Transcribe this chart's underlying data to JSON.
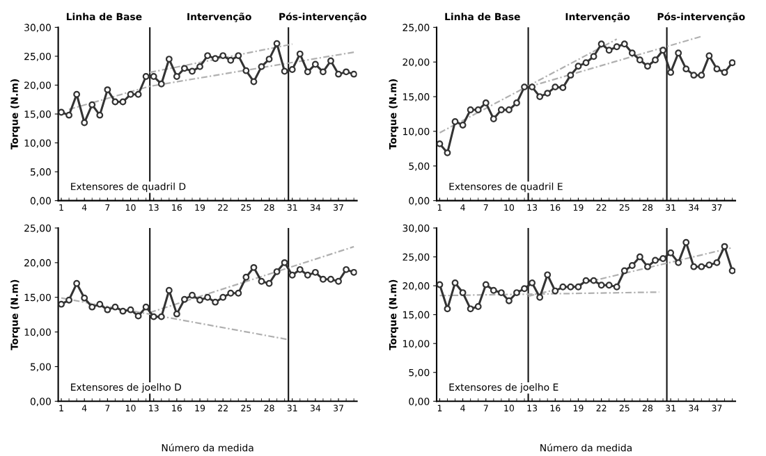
{
  "chart_data": [
    {
      "type": "line",
      "ylabel": "Torque (N.m)",
      "x": [
        1,
        2,
        3,
        4,
        5,
        6,
        7,
        8,
        9,
        10,
        11,
        12,
        13,
        14,
        15,
        16,
        17,
        18,
        19,
        20,
        21,
        22,
        23,
        24,
        25,
        26,
        27,
        28,
        29,
        30,
        31,
        32,
        33,
        34,
        35,
        36,
        37,
        38,
        39
      ],
      "xlim": [
        0.6,
        39.4
      ],
      "xticks": [
        1,
        4,
        7,
        10,
        13,
        16,
        19,
        22,
        25,
        28,
        31,
        34,
        37
      ],
      "ylim": [
        0,
        30
      ],
      "yticks": [
        {
          "value": 0,
          "label": "0,00"
        },
        {
          "value": 5,
          "label": "5,00"
        },
        {
          "value": 10,
          "label": "10,00"
        },
        {
          "value": 15,
          "label": "15,00"
        },
        {
          "value": 20,
          "label": "20,00"
        },
        {
          "value": 25,
          "label": "25,00"
        },
        {
          "value": 30,
          "label": "30,00"
        }
      ],
      "marker": "circle",
      "grid": false,
      "legend": false,
      "series": [
        {
          "color": "#333333",
          "values": [
            15.3,
            14.8,
            18.4,
            13.5,
            16.6,
            14.8,
            19.2,
            17.1,
            17.1,
            18.4,
            18.4,
            21.5,
            21.5,
            20.2,
            24.5,
            21.5,
            22.9,
            22.4,
            23.2,
            25.1,
            24.6,
            25.1,
            24.3,
            25.1,
            22.5,
            20.6,
            23.2,
            24.5,
            27.2,
            22.4,
            22.7,
            25.4,
            22.3,
            23.6,
            22.3,
            24.2,
            21.9,
            22.3,
            21.9
          ]
        },
        {
          "type": "line",
          "marker": "none",
          "line_style": "dashed",
          "color": "#b0b0b0",
          "x": [
            2,
            12.5,
            39
          ],
          "values": [
            15.8,
            19.8,
            25.7
          ]
        },
        {
          "type": "line",
          "marker": "none",
          "line_style": "dashed",
          "color": "#b0b0b0",
          "x": [
            12.5,
            31
          ],
          "values": [
            22.2,
            27.1
          ]
        }
      ],
      "ref_lines": [
        {
          "axis": "x",
          "value": 12.5,
          "color": "#111111"
        },
        {
          "axis": "x",
          "value": 30.5,
          "color": "#111111"
        }
      ],
      "annotations": [
        "Linha de Base",
        "Intervenção",
        "Pós-intervenção",
        "Extensores de quadril D"
      ]
    },
    {
      "type": "line",
      "ylabel": "Torque (N.m)",
      "x": [
        1,
        2,
        3,
        4,
        5,
        6,
        7,
        8,
        9,
        10,
        11,
        12,
        13,
        14,
        15,
        16,
        17,
        18,
        19,
        20,
        21,
        22,
        23,
        24,
        25,
        26,
        27,
        28,
        29,
        30,
        31,
        32,
        33,
        34,
        35,
        36,
        37,
        38,
        39
      ],
      "xlim": [
        0.6,
        39.4
      ],
      "xticks": [
        1,
        4,
        7,
        10,
        13,
        16,
        19,
        22,
        25,
        28,
        31,
        34,
        37
      ],
      "ylim": [
        0,
        25
      ],
      "yticks": [
        {
          "value": 0,
          "label": "0,00"
        },
        {
          "value": 5,
          "label": "5,00"
        },
        {
          "value": 10,
          "label": "10,00"
        },
        {
          "value": 15,
          "label": "15,00"
        },
        {
          "value": 20,
          "label": "20,00"
        },
        {
          "value": 25,
          "label": "25,00"
        }
      ],
      "marker": "circle",
      "grid": false,
      "legend": false,
      "series": [
        {
          "color": "#333333",
          "values": [
            8.2,
            6.9,
            11.4,
            10.9,
            13.1,
            13.1,
            14.1,
            11.8,
            13.1,
            13.1,
            14.1,
            16.4,
            16.4,
            15.0,
            15.5,
            16.4,
            16.3,
            18.1,
            19.4,
            19.9,
            20.8,
            22.6,
            21.7,
            22.2,
            22.6,
            21.3,
            20.3,
            19.4,
            20.3,
            21.7,
            18.5,
            21.3,
            19.0,
            18.1,
            18.1,
            20.9,
            19.0,
            18.5,
            19.9
          ]
        },
        {
          "type": "line",
          "marker": "none",
          "line_style": "dashed",
          "color": "#b0b0b0",
          "x": [
            1,
            24
          ],
          "values": [
            9.8,
            23.3
          ]
        },
        {
          "type": "line",
          "marker": "none",
          "line_style": "dashed",
          "color": "#b0b0b0",
          "x": [
            12.5,
            35
          ],
          "values": [
            16.4,
            23.7
          ]
        }
      ],
      "ref_lines": [
        {
          "axis": "x",
          "value": 12.5,
          "color": "#111111"
        },
        {
          "axis": "x",
          "value": 30.5,
          "color": "#111111"
        }
      ],
      "annotations": [
        "Linha de Base",
        "Intervenção",
        "Pós-intervenção",
        "Extensores de quadril E"
      ]
    },
    {
      "type": "line",
      "ylabel": "Torque (N.m)",
      "xlabel": "Número da medida",
      "x": [
        1,
        2,
        3,
        4,
        5,
        6,
        7,
        8,
        9,
        10,
        11,
        12,
        13,
        14,
        15,
        16,
        17,
        18,
        19,
        20,
        21,
        22,
        23,
        24,
        25,
        26,
        27,
        28,
        29,
        30,
        31,
        32,
        33,
        34,
        35,
        36,
        37,
        38,
        39
      ],
      "xlim": [
        0.6,
        39.4
      ],
      "xticks": [
        1,
        4,
        7,
        10,
        13,
        16,
        19,
        22,
        25,
        28,
        31,
        34,
        37
      ],
      "ylim": [
        0,
        25
      ],
      "yticks": [
        {
          "value": 0,
          "label": "0,00"
        },
        {
          "value": 5,
          "label": "5,00"
        },
        {
          "value": 10,
          "label": "10,00"
        },
        {
          "value": 15,
          "label": "15,00"
        },
        {
          "value": 20,
          "label": "20,00"
        },
        {
          "value": 25,
          "label": "25,00"
        }
      ],
      "marker": "circle",
      "grid": false,
      "legend": false,
      "series": [
        {
          "color": "#333333",
          "values": [
            14.0,
            14.6,
            17.0,
            14.9,
            13.6,
            14.0,
            13.2,
            13.6,
            13.0,
            13.2,
            12.3,
            13.6,
            12.2,
            12.2,
            16.0,
            12.6,
            14.7,
            15.3,
            14.6,
            15.0,
            14.3,
            15.0,
            15.6,
            15.6,
            17.9,
            19.3,
            17.3,
            17.0,
            18.7,
            20.0,
            18.2,
            19.0,
            18.2,
            18.6,
            17.6,
            17.6,
            17.3,
            19.0,
            18.6
          ]
        },
        {
          "type": "line",
          "marker": "none",
          "line_style": "dashed",
          "color": "#b0b0b0",
          "x": [
            1,
            30.5
          ],
          "values": [
            14.9,
            8.9
          ]
        },
        {
          "type": "line",
          "marker": "none",
          "line_style": "dashed",
          "color": "#b0b0b0",
          "x": [
            12.5,
            39
          ],
          "values": [
            12.8,
            22.3
          ]
        }
      ],
      "ref_lines": [
        {
          "axis": "x",
          "value": 12.5,
          "color": "#111111"
        },
        {
          "axis": "x",
          "value": 30.5,
          "color": "#111111"
        }
      ],
      "annotations": [
        "Extensores de joelho D"
      ]
    },
    {
      "type": "line",
      "ylabel": "Torque (N.m)",
      "xlabel": "Número da medida",
      "x": [
        1,
        2,
        3,
        4,
        5,
        6,
        7,
        8,
        9,
        10,
        11,
        12,
        13,
        14,
        15,
        16,
        17,
        18,
        19,
        20,
        21,
        22,
        23,
        24,
        25,
        26,
        27,
        28,
        29,
        30,
        31,
        32,
        33,
        34,
        35,
        36,
        37,
        38,
        39
      ],
      "xlim": [
        0.6,
        39.4
      ],
      "xticks": [
        1,
        4,
        7,
        10,
        13,
        16,
        19,
        22,
        25,
        28,
        31,
        34,
        37
      ],
      "ylim": [
        0,
        30
      ],
      "yticks": [
        {
          "value": 0,
          "label": "0,00"
        },
        {
          "value": 5,
          "label": "5,00"
        },
        {
          "value": 10,
          "label": "10,00"
        },
        {
          "value": 15,
          "label": "15,00"
        },
        {
          "value": 20,
          "label": "20,00"
        },
        {
          "value": 25,
          "label": "25,00"
        },
        {
          "value": 30,
          "label": "30,00"
        }
      ],
      "marker": "circle",
      "grid": false,
      "legend": false,
      "series": [
        {
          "color": "#333333",
          "values": [
            20.2,
            16.0,
            20.5,
            18.8,
            16.0,
            16.4,
            20.2,
            19.2,
            18.8,
            17.4,
            18.8,
            19.5,
            20.5,
            18.0,
            21.9,
            19.1,
            19.8,
            19.8,
            19.8,
            20.9,
            20.9,
            20.1,
            20.1,
            19.8,
            22.6,
            23.5,
            25.0,
            23.3,
            24.4,
            24.7,
            25.7,
            24.0,
            27.5,
            23.3,
            23.3,
            23.6,
            24.0,
            26.8,
            22.6
          ]
        },
        {
          "type": "line",
          "marker": "none",
          "line_style": "dashed",
          "color": "#b0b0b0",
          "x": [
            1,
            29.5
          ],
          "values": [
            18.3,
            18.9
          ]
        },
        {
          "type": "line",
          "marker": "none",
          "line_style": "dashed",
          "color": "#b0b0b0",
          "x": [
            12.5,
            39
          ],
          "values": [
            18.2,
            26.6
          ]
        }
      ],
      "ref_lines": [
        {
          "axis": "x",
          "value": 12.5,
          "color": "#111111"
        },
        {
          "axis": "x",
          "value": 30.5,
          "color": "#111111"
        }
      ],
      "annotations": [
        "Extensores de joelho E"
      ]
    }
  ]
}
